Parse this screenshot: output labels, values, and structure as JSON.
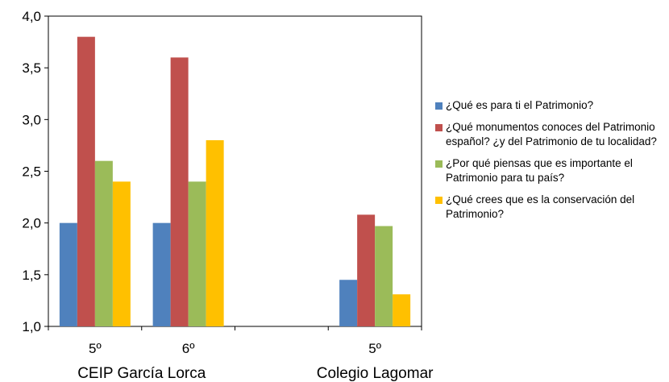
{
  "chart_data": {
    "type": "bar",
    "categories": [
      "5º",
      "6º",
      "",
      "5º"
    ],
    "groups": [
      {
        "label": "CEIP García Lorca",
        "categories": [
          "5º",
          "6º"
        ]
      },
      {
        "label": "Colegio Lagomar",
        "categories": [
          "5º"
        ]
      }
    ],
    "series": [
      {
        "name": "¿Qué es para ti el Patrimonio?",
        "color": "#4F81BD",
        "values": [
          2.0,
          2.0,
          null,
          1.45
        ]
      },
      {
        "name": "¿Qué monumentos conoces del Patrimonio español? ¿y del Patrimonio de tu localidad?",
        "color": "#C0504D",
        "values": [
          3.8,
          3.6,
          null,
          2.08
        ]
      },
      {
        "name": "¿Por qué piensas que es importante el Patrimonio para tu país?",
        "color": "#9BBB59",
        "values": [
          2.6,
          2.4,
          null,
          1.97
        ]
      },
      {
        "name": "¿Qué crees que es la conservación del Patrimonio?",
        "color": "#FFC000",
        "values": [
          2.4,
          2.8,
          null,
          1.31
        ]
      }
    ],
    "ylim": [
      1.0,
      4.0
    ],
    "yticks": [
      "1,0",
      "1,5",
      "2,0",
      "2,5",
      "3,0",
      "3,5",
      "4,0"
    ],
    "title": "",
    "xlabel": "",
    "ylabel": "",
    "grid": false,
    "legend_position": "right"
  }
}
